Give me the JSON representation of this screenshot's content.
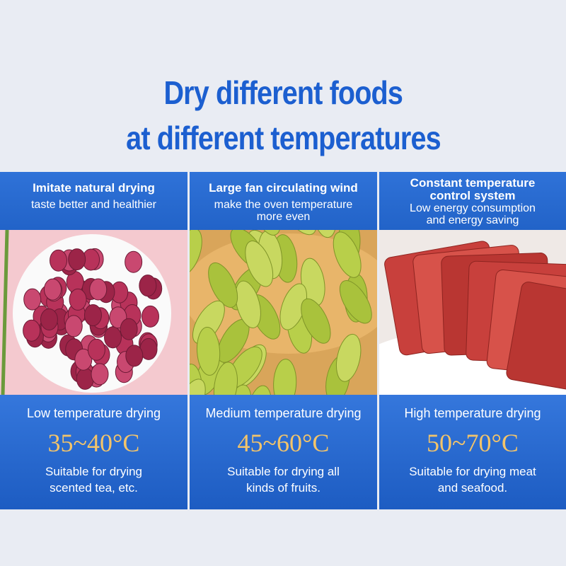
{
  "title": [
    "Dry different foods",
    "at different temperatures"
  ],
  "columns": [
    {
      "heading": [
        "Imitate natural drying"
      ],
      "subtext": [
        "taste better and healthier"
      ],
      "level": "Low temperature drying",
      "range": "35~40°C",
      "description": [
        "Suitable for drying",
        "scented tea, etc."
      ]
    },
    {
      "heading": [
        "Large fan circulating wind"
      ],
      "subtext": [
        "make the oven temperature",
        "more even"
      ],
      "level": "Medium temperature drying",
      "range": "45~60°C",
      "description": [
        "Suitable for drying all",
        "kinds of fruits."
      ]
    },
    {
      "heading": [
        "Constant temperature",
        "control system"
      ],
      "subtext": [
        "Low energy consumption",
        "and energy saving"
      ],
      "level": "High temperature drying",
      "range": "50~70°C",
      "description": [
        "Suitable for drying meat",
        "and seafood."
      ]
    }
  ]
}
